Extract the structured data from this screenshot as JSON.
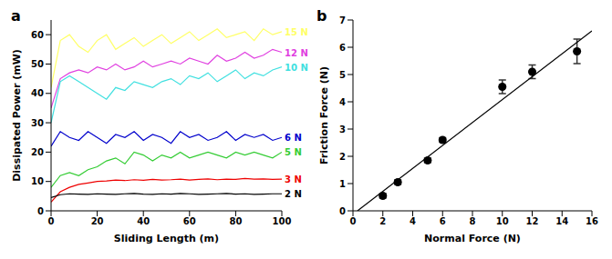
{
  "chart_data": [
    {
      "type": "line",
      "title": "a",
      "x_label": "Sliding Length (m)",
      "y_label": "Dissipated Power (mW)",
      "x": [
        0,
        4,
        8,
        12,
        16,
        20,
        24,
        28,
        32,
        36,
        40,
        44,
        48,
        52,
        56,
        60,
        64,
        68,
        72,
        76,
        80,
        84,
        88,
        92,
        96,
        100
      ],
      "xlim": [
        0,
        100
      ],
      "xticks": [
        0,
        20,
        40,
        60,
        80,
        100
      ],
      "ylim": [
        0,
        65
      ],
      "yticks": [
        0,
        10,
        20,
        30,
        40,
        50,
        60
      ],
      "grid": false,
      "series": [
        {
          "name": "15 N",
          "color": "#ffff66",
          "values": [
            42,
            58,
            60,
            56,
            54,
            58,
            60,
            55,
            57,
            59,
            56,
            58,
            60,
            57,
            59,
            61,
            58,
            60,
            62,
            59,
            60,
            61,
            58,
            62,
            60,
            61
          ]
        },
        {
          "name": "12 N",
          "color": "#e040e0",
          "values": [
            35,
            45,
            47,
            48,
            47,
            49,
            48,
            50,
            48,
            49,
            51,
            49,
            50,
            51,
            50,
            52,
            51,
            50,
            53,
            51,
            52,
            54,
            52,
            53,
            55,
            54
          ]
        },
        {
          "name": "10 N",
          "color": "#40e0e0",
          "values": [
            30,
            44,
            46,
            44,
            42,
            40,
            38,
            42,
            41,
            44,
            43,
            42,
            44,
            45,
            43,
            46,
            45,
            47,
            44,
            46,
            48,
            45,
            47,
            46,
            48,
            49
          ]
        },
        {
          "name": "6 N",
          "color": "#0000cc",
          "values": [
            22,
            27,
            25,
            24,
            27,
            25,
            23,
            26,
            25,
            27,
            24,
            26,
            25,
            23,
            27,
            25,
            26,
            24,
            25,
            27,
            24,
            26,
            25,
            26,
            24,
            25
          ]
        },
        {
          "name": "5 N",
          "color": "#33cc33",
          "values": [
            8,
            12,
            13,
            12,
            14,
            15,
            17,
            18,
            16,
            20,
            19,
            17,
            19,
            18,
            20,
            18,
            19,
            20,
            19,
            18,
            20,
            19,
            20,
            19,
            18,
            20
          ]
        },
        {
          "name": "3 N",
          "color": "#ee0000",
          "values": [
            3,
            6.5,
            8,
            9,
            9.5,
            10,
            10.2,
            10.5,
            10.3,
            10.6,
            10.4,
            10.7,
            10.5,
            10.6,
            10.8,
            10.5,
            10.7,
            10.9,
            10.6,
            10.8,
            10.7,
            11,
            10.8,
            10.9,
            10.7,
            10.8
          ]
        },
        {
          "name": "2 N",
          "color": "#000000",
          "values": [
            4.5,
            5.5,
            5.8,
            5.7,
            5.6,
            5.8,
            5.7,
            5.6,
            5.8,
            5.9,
            5.7,
            5.6,
            5.8,
            5.7,
            5.9,
            5.8,
            5.6,
            5.7,
            5.8,
            5.9,
            5.7,
            5.8,
            5.6,
            5.7,
            5.8,
            5.8
          ]
        }
      ]
    },
    {
      "type": "scatter",
      "title": "b",
      "x_label": "Normal Force (N)",
      "y_label": "Friction Force (N)",
      "x": [
        2,
        3,
        5,
        6,
        10,
        12,
        15
      ],
      "values": [
        0.55,
        1.05,
        1.85,
        2.6,
        4.55,
        5.1,
        5.85
      ],
      "errors": [
        0.08,
        0.08,
        0.08,
        0.08,
        0.25,
        0.25,
        0.45
      ],
      "color": "#000000",
      "marker": "circle",
      "fit": {
        "x": [
          0.3,
          16
        ],
        "y": [
          0,
          6.6
        ],
        "color": "#000000",
        "line_style": "solid"
      },
      "xlim": [
        0,
        16
      ],
      "xticks": [
        0,
        2,
        4,
        6,
        8,
        10,
        12,
        14,
        16
      ],
      "ylim": [
        0,
        7
      ],
      "yticks": [
        0,
        1,
        2,
        3,
        4,
        5,
        6,
        7
      ],
      "grid": false
    }
  ]
}
